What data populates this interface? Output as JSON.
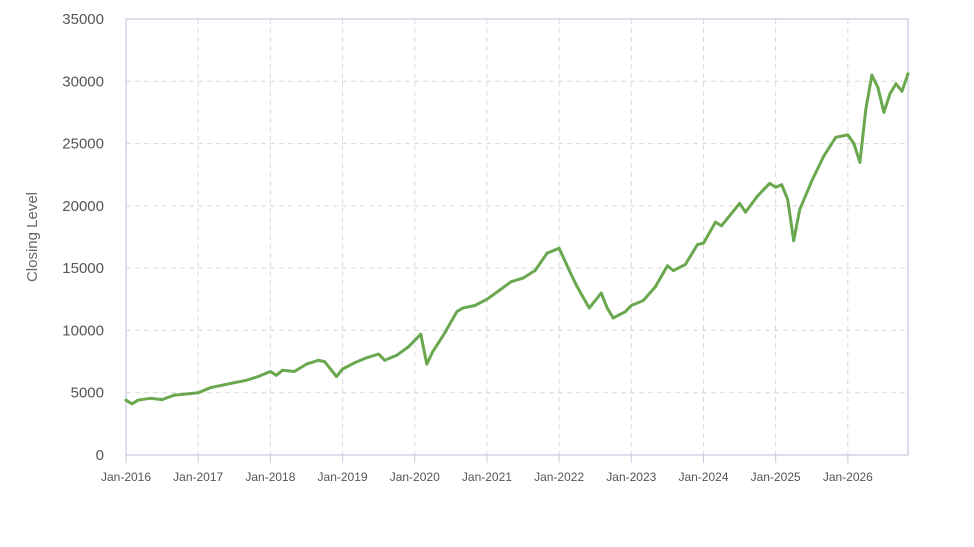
{
  "chart_data": {
    "type": "line",
    "title": "",
    "xlabel": "",
    "ylabel": "Closing Level",
    "ylim": [
      0,
      35000
    ],
    "xlim": [
      "2016-01",
      "2026-11"
    ],
    "grid": true,
    "legend": "none",
    "y_ticks": [
      "0",
      "5000",
      "10000",
      "15000",
      "20000",
      "25000",
      "30000",
      "35000"
    ],
    "x_ticks": [
      "Jan-2016",
      "Jan-2017",
      "Jan-2018",
      "Jan-2019",
      "Jan-2020",
      "Jan-2021",
      "Jan-2022",
      "Jan-2023",
      "Jan-2024",
      "Jan-2025",
      "Jan-2026"
    ],
    "colors": {
      "line": "#6aa84f",
      "grid": "#d9d9d9",
      "frame": "#c5c9dc"
    },
    "series": [
      {
        "x": [
          "2016-01",
          "2016-02",
          "2016-03",
          "2016-05",
          "2016-07",
          "2016-09",
          "2016-11",
          "2017-01",
          "2017-03",
          "2017-05",
          "2017-07",
          "2017-09",
          "2017-11",
          "2018-01",
          "2018-02",
          "2018-03",
          "2018-05",
          "2018-07",
          "2018-09",
          "2018-10",
          "2018-12",
          "2019-01",
          "2019-03",
          "2019-05",
          "2019-07",
          "2019-08",
          "2019-10",
          "2019-12",
          "2020-01",
          "2020-02",
          "2020-03",
          "2020-04",
          "2020-06",
          "2020-08",
          "2020-09",
          "2020-11",
          "2021-01",
          "2021-03",
          "2021-05",
          "2021-07",
          "2021-09",
          "2021-11",
          "2022-01",
          "2022-03",
          "2022-04",
          "2022-06",
          "2022-08",
          "2022-09",
          "2022-10",
          "2022-12",
          "2023-01",
          "2023-03",
          "2023-05",
          "2023-07",
          "2023-08",
          "2023-10",
          "2023-12",
          "2024-01",
          "2024-03",
          "2024-04",
          "2024-06",
          "2024-07",
          "2024-08",
          "2024-10",
          "2024-12",
          "2025-01",
          "2025-02",
          "2025-03",
          "2025-04",
          "2025-05",
          "2025-07",
          "2025-09",
          "2025-11",
          "2026-01",
          "2026-02",
          "2026-03",
          "2026-04",
          "2026-05",
          "2026-06",
          "2026-07",
          "2026-08",
          "2026-09",
          "2026-10",
          "2026-11"
        ],
        "y": [
          4400,
          4100,
          4400,
          4550,
          4450,
          4800,
          4900,
          5000,
          5400,
          5600,
          5800,
          6000,
          6300,
          6700,
          6400,
          6800,
          6700,
          7300,
          7600,
          7500,
          6300,
          6900,
          7400,
          7800,
          8100,
          7600,
          8000,
          8700,
          9200,
          9700,
          7300,
          8300,
          9800,
          11500,
          11800,
          12000,
          12500,
          13200,
          13900,
          14200,
          14800,
          16200,
          16600,
          14500,
          13500,
          11800,
          13000,
          11800,
          11000,
          11500,
          12000,
          12400,
          13500,
          15200,
          14800,
          15300,
          16900,
          17000,
          18700,
          18400,
          19600,
          20200,
          19500,
          20800,
          21800,
          21500,
          21700,
          20500,
          17200,
          19700,
          22000,
          24000,
          25500,
          25700,
          25000,
          23500,
          27800,
          30500,
          29500,
          27500,
          29000,
          29800,
          29200,
          30600
        ]
      }
    ]
  }
}
